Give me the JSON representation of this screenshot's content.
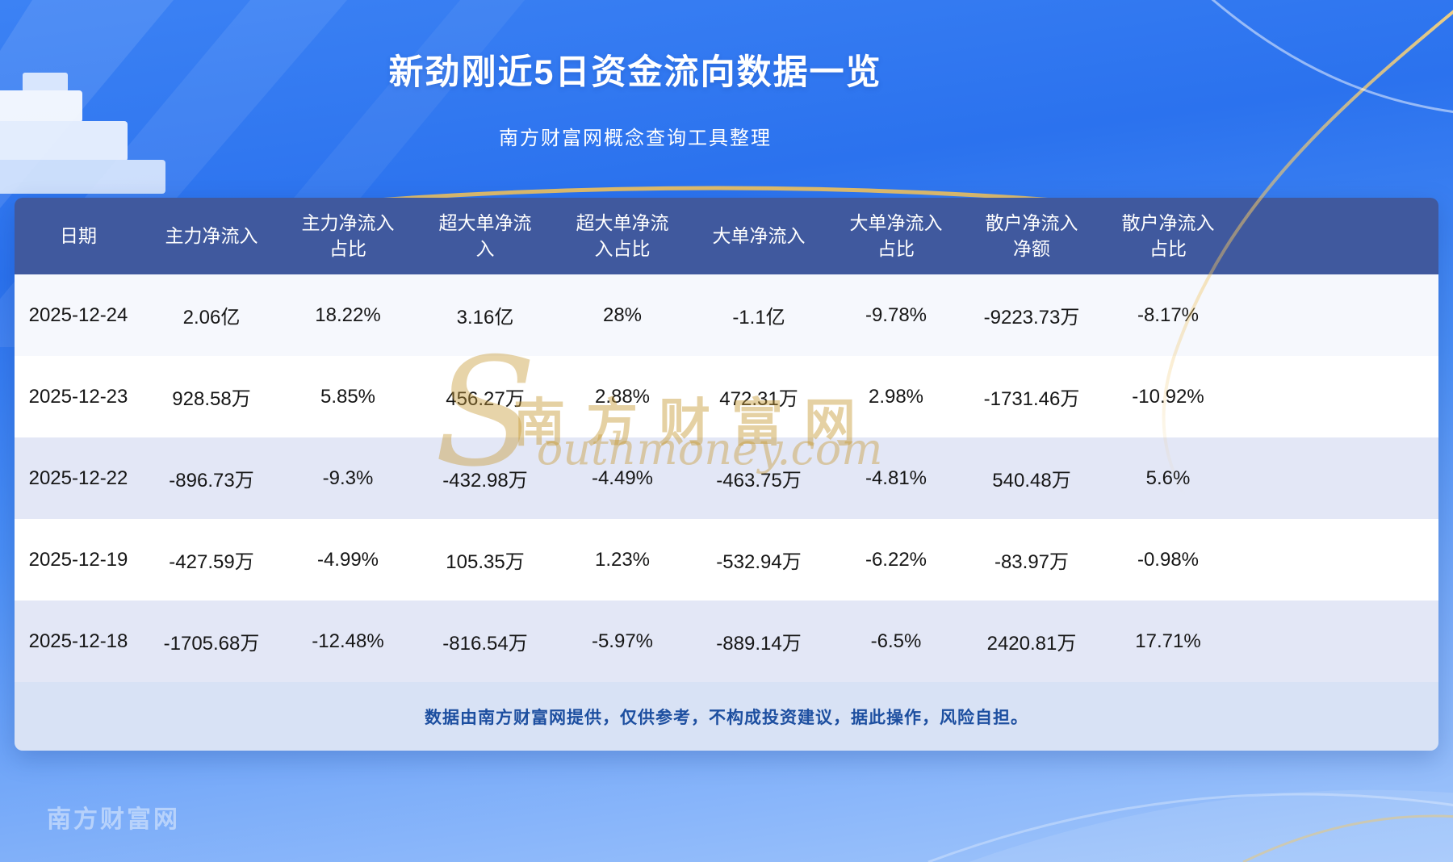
{
  "header": {
    "title": "新劲刚近5日资金流向数据一览",
    "subtitle": "南方财富网概念查询工具整理"
  },
  "chart_data": {
    "type": "table",
    "title": "新劲刚近5日资金流向数据一览",
    "columns": [
      "日期",
      "主力净流入",
      "主力净流入\n占比",
      "超大单净流\n入",
      "超大单净流\n入占比",
      "大单净流入",
      "大单净流入\n占比",
      "散户净流入\n净额",
      "散户净流入\n占比"
    ],
    "rows": [
      [
        "2025-12-24",
        "2.06亿",
        "18.22%",
        "3.16亿",
        "28%",
        "-1.1亿",
        "-9.78%",
        "-9223.73万",
        "-8.17%"
      ],
      [
        "2025-12-23",
        "928.58万",
        "5.85%",
        "456.27万",
        "2.88%",
        "472.31万",
        "2.98%",
        "-1731.46万",
        "-10.92%"
      ],
      [
        "2025-12-22",
        "-896.73万",
        "-9.3%",
        "-432.98万",
        "-4.49%",
        "-463.75万",
        "-4.81%",
        "540.48万",
        "5.6%"
      ],
      [
        "2025-12-19",
        "-427.59万",
        "-4.99%",
        "105.35万",
        "1.23%",
        "-532.94万",
        "-6.22%",
        "-83.97万",
        "-0.98%"
      ],
      [
        "2025-12-18",
        "-1705.68万",
        "-12.48%",
        "-816.54万",
        "-5.97%",
        "-889.14万",
        "-6.5%",
        "2420.81万",
        "17.71%"
      ]
    ]
  },
  "watermark": {
    "cn": "南方财富网",
    "en": "Southmoney.com"
  },
  "footer": {
    "disclaimer": "数据由南方财富网提供，仅供参考，不构成投资建议，据此操作，风险自担。"
  },
  "bottom_watermark": {
    "text": "南方财富网"
  },
  "colors": {
    "background_blue": "#2b72ee",
    "table_header_bg": "#40599e",
    "row_stripe": "#e3e7f6",
    "disclaimer_bg": "#d8e2f5",
    "disclaimer_text": "#1d4fa0",
    "accent_gold": "#e8b54a",
    "title_text": "#ffffff"
  }
}
